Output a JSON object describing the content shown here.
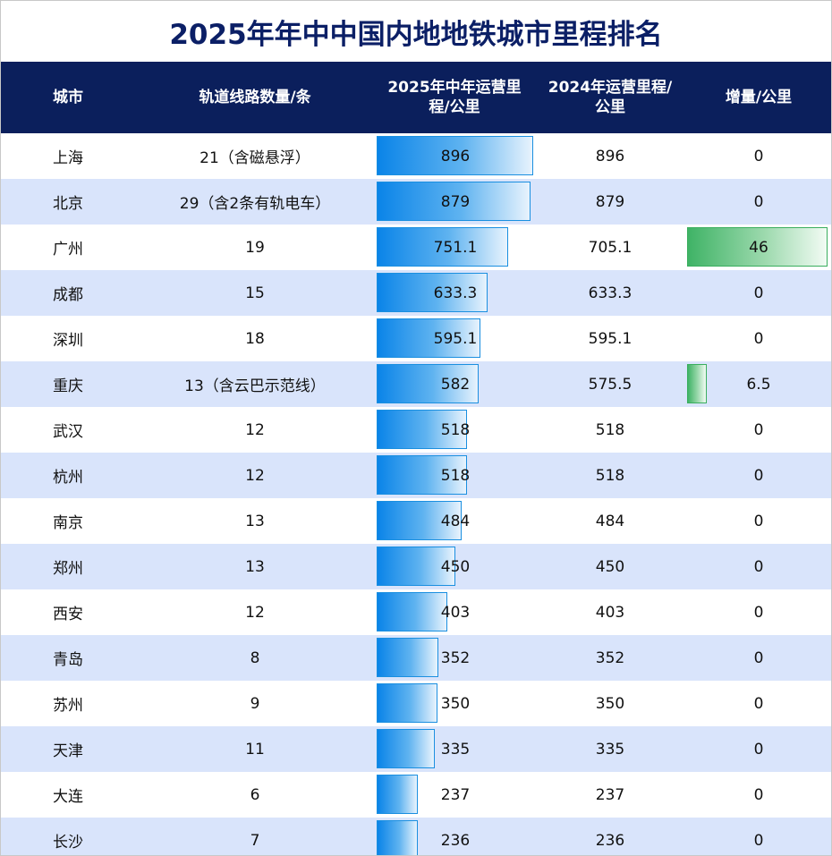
{
  "title": "2025年年中中国内地地铁城市里程排名",
  "headers": [
    "城市",
    "轨道线路数量/条",
    "2025年中年运营里程/公里",
    "2024年运营里程/公里",
    "增量/公里"
  ],
  "header_lines": [
    [
      "城市"
    ],
    [
      "轨道线路数量/条"
    ],
    [
      "2025年中年运营里",
      "程/公里"
    ],
    [
      "2024年运营里程/",
      "公里"
    ],
    [
      "增量/公里"
    ]
  ],
  "colors": {
    "header_bg": "#0b1f5c",
    "title": "#0b1f66",
    "alt_row": "#d9e4fb",
    "blue_bar": "#0a84e8",
    "green_bar": "#3fb366"
  },
  "chart_data": {
    "type": "table",
    "bar_max_2025": 896,
    "bar_max_increase": 46,
    "rows": [
      {
        "city": "上海",
        "lines": "21（含磁悬浮）",
        "km2025": "896",
        "v2025": 896,
        "km2024": "896",
        "inc": "0",
        "vinc": 0
      },
      {
        "city": "北京",
        "lines": "29（含2条有轨电车）",
        "km2025": "879",
        "v2025": 879,
        "km2024": "879",
        "inc": "0",
        "vinc": 0
      },
      {
        "city": "广州",
        "lines": "19",
        "km2025": "751.1",
        "v2025": 751.1,
        "km2024": "705.1",
        "inc": "46",
        "vinc": 46
      },
      {
        "city": "成都",
        "lines": "15",
        "km2025": "633.3",
        "v2025": 633.3,
        "km2024": "633.3",
        "inc": "0",
        "vinc": 0
      },
      {
        "city": "深圳",
        "lines": "18",
        "km2025": "595.1",
        "v2025": 595.1,
        "km2024": "595.1",
        "inc": "0",
        "vinc": 0
      },
      {
        "city": "重庆",
        "lines": "13（含云巴示范线）",
        "km2025": "582",
        "v2025": 582,
        "km2024": "575.5",
        "inc": "6.5",
        "vinc": 6.5
      },
      {
        "city": "武汉",
        "lines": "12",
        "km2025": "518",
        "v2025": 518,
        "km2024": "518",
        "inc": "0",
        "vinc": 0
      },
      {
        "city": "杭州",
        "lines": "12",
        "km2025": "518",
        "v2025": 518,
        "km2024": "518",
        "inc": "0",
        "vinc": 0
      },
      {
        "city": "南京",
        "lines": "13",
        "km2025": "484",
        "v2025": 484,
        "km2024": "484",
        "inc": "0",
        "vinc": 0
      },
      {
        "city": "郑州",
        "lines": "13",
        "km2025": "450",
        "v2025": 450,
        "km2024": "450",
        "inc": "0",
        "vinc": 0
      },
      {
        "city": "西安",
        "lines": "12",
        "km2025": "403",
        "v2025": 403,
        "km2024": "403",
        "inc": "0",
        "vinc": 0
      },
      {
        "city": "青岛",
        "lines": "8",
        "km2025": "352",
        "v2025": 352,
        "km2024": "352",
        "inc": "0",
        "vinc": 0
      },
      {
        "city": "苏州",
        "lines": "9",
        "km2025": "350",
        "v2025": 350,
        "km2024": "350",
        "inc": "0",
        "vinc": 0
      },
      {
        "city": "天津",
        "lines": "11",
        "km2025": "335",
        "v2025": 335,
        "km2024": "335",
        "inc": "0",
        "vinc": 0
      },
      {
        "city": "大连",
        "lines": "6",
        "km2025": "237",
        "v2025": 237,
        "km2024": "237",
        "inc": "0",
        "vinc": 0
      },
      {
        "city": "长沙",
        "lines": "7",
        "km2025": "236",
        "v2025": 236,
        "km2024": "236",
        "inc": "0",
        "vinc": 0
      }
    ]
  }
}
